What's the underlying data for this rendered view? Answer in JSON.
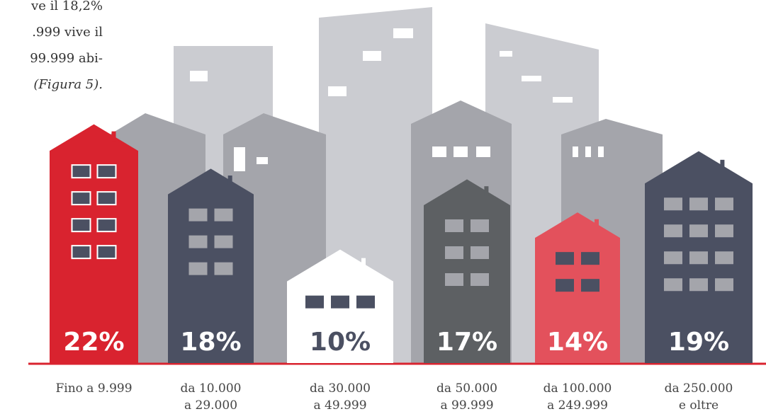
{
  "chart_data": {
    "type": "house-bar",
    "text_fragment": [
      "ve il 18,2%",
      ".999 vive il",
      "99.999 abi-",
      "(Figura 5)."
    ],
    "categories": [
      [
        "Fino a 9.999"
      ],
      [
        "da 10.000",
        "a 29.000"
      ],
      [
        "da 30.000",
        "a 49.999"
      ],
      [
        "da 50.000",
        "a 99.999"
      ],
      [
        "da 100.000",
        "a 249.999"
      ],
      [
        "da 250.000",
        "e oltre"
      ]
    ],
    "values": [
      22,
      18,
      10,
      17,
      14,
      19
    ],
    "value_labels": [
      "22%",
      "18%",
      "10%",
      "17%",
      "14%",
      "19%"
    ],
    "colors": [
      "#d9232f",
      "#4b5062",
      "#ffffff",
      "#5d6063",
      "#e3515c",
      "#4b5062"
    ],
    "ylim": [
      2.5,
      25
    ]
  }
}
